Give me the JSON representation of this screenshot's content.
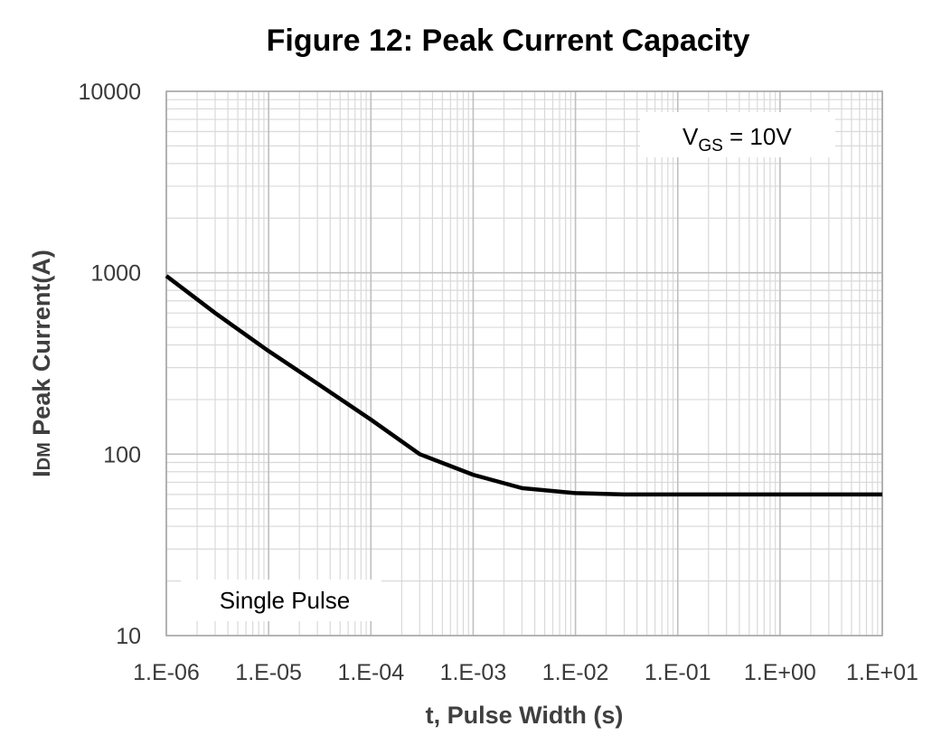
{
  "chart_data": {
    "type": "line",
    "title": "Figure 12: Peak Current Capacity",
    "xlabel": "t, Pulse Width (s)",
    "ylabel": "IDM Peak Current(A)",
    "ylabel_main": "I",
    "ylabel_sub": "DM",
    "ylabel_rest": " Peak Current(A)",
    "xscale": "log",
    "yscale": "log",
    "xlim": [
      1e-06,
      10
    ],
    "ylim": [
      10,
      10000
    ],
    "grid": true,
    "x_tick_labels": [
      "1.E-06",
      "1.E-05",
      "1.E-04",
      "1.E-03",
      "1.E-02",
      "1.E-01",
      "1.E+00",
      "1.E+01"
    ],
    "y_tick_labels": [
      "10",
      "100",
      "1000",
      "10000"
    ],
    "series": [
      {
        "name": "Single Pulse, VGS = 10V",
        "x": [
          1e-06,
          3e-06,
          1e-05,
          3e-05,
          0.0001,
          0.0003,
          0.001,
          0.003,
          0.01,
          0.03,
          0.1,
          1,
          10
        ],
        "y": [
          960,
          600,
          370,
          245,
          155,
          100,
          77,
          65,
          61,
          60,
          60,
          60,
          60
        ]
      }
    ],
    "annotations": {
      "vgs_main": "V",
      "vgs_sub": "GS",
      "vgs_rest": " = 10V",
      "pulse": "Single Pulse"
    }
  }
}
